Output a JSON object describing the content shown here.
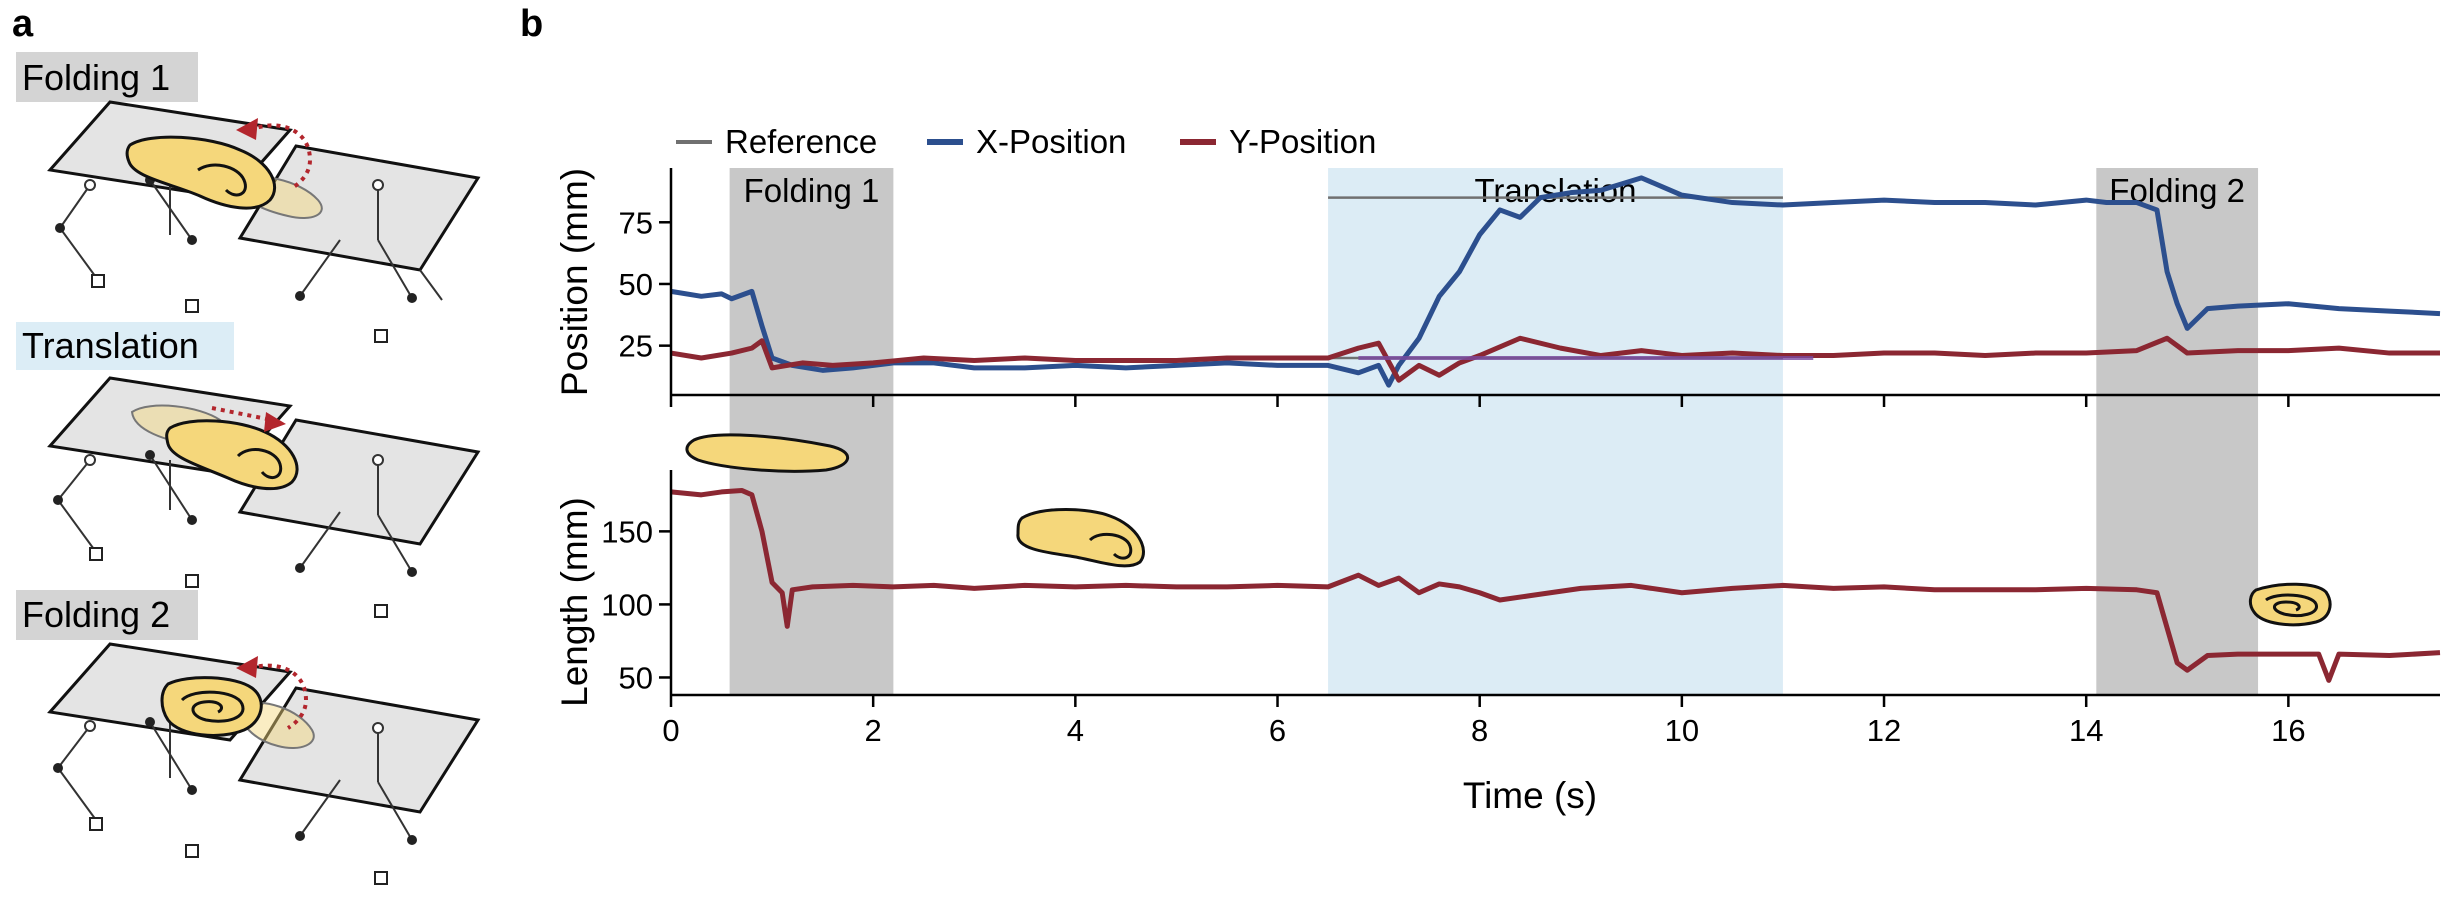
{
  "panel_a": {
    "letter": "a",
    "stages": [
      "Folding 1",
      "Translation",
      "Folding 2"
    ],
    "colors": {
      "plate": "#e4e4e4",
      "object": "#f5d77b",
      "arrow": "#b3262d",
      "label_gray": "#d4d4d4",
      "label_blue": "#dcedf6"
    }
  },
  "panel_b": {
    "letter": "b"
  },
  "chart_data": [
    {
      "type": "line",
      "ylabel": "Position (mm)",
      "xlim": [
        0,
        17.5
      ],
      "ylim": [
        5,
        97
      ],
      "yticks": [
        25,
        50,
        75
      ],
      "legend": {
        "placement": "top",
        "entries": [
          "Reference",
          "X-Position",
          "Y-Position"
        ]
      },
      "phases": [
        {
          "label": "Folding 1",
          "start": 0.58,
          "end": 2.2,
          "color": "#c8c8c8"
        },
        {
          "label": "Translation",
          "start": 6.5,
          "end": 11.0,
          "color": "#dcecf5"
        },
        {
          "label": "Folding 2",
          "start": 14.1,
          "end": 15.7,
          "color": "#c8c8c8"
        }
      ],
      "series": [
        {
          "name": "Reference",
          "color": "#707070",
          "segments": [
            [
              [
                6.5,
                85
              ],
              [
                11.0,
                85
              ]
            ],
            [
              [
                6.5,
                20
              ],
              [
                11.0,
                20
              ]
            ]
          ]
        },
        {
          "name": "X-Position",
          "color": "#2c4f8e",
          "points": [
            [
              0,
              47
            ],
            [
              0.3,
              45
            ],
            [
              0.5,
              46
            ],
            [
              0.6,
              44
            ],
            [
              0.8,
              47
            ],
            [
              0.9,
              33
            ],
            [
              1.0,
              20
            ],
            [
              1.2,
              17
            ],
            [
              1.5,
              15
            ],
            [
              1.8,
              16
            ],
            [
              2.2,
              18
            ],
            [
              2.6,
              18
            ],
            [
              3.0,
              16
            ],
            [
              3.5,
              16
            ],
            [
              4.0,
              17
            ],
            [
              4.5,
              16
            ],
            [
              5.0,
              17
            ],
            [
              5.5,
              18
            ],
            [
              6.0,
              17
            ],
            [
              6.5,
              17
            ],
            [
              6.8,
              14
            ],
            [
              7.0,
              17
            ],
            [
              7.1,
              9
            ],
            [
              7.2,
              17
            ],
            [
              7.4,
              28
            ],
            [
              7.6,
              45
            ],
            [
              7.8,
              55
            ],
            [
              8.0,
              70
            ],
            [
              8.2,
              80
            ],
            [
              8.4,
              77
            ],
            [
              8.6,
              85
            ],
            [
              8.9,
              87
            ],
            [
              9.2,
              88
            ],
            [
              9.6,
              93
            ],
            [
              10.0,
              86
            ],
            [
              10.5,
              83
            ],
            [
              11.0,
              82
            ],
            [
              11.5,
              83
            ],
            [
              12.0,
              84
            ],
            [
              12.5,
              83
            ],
            [
              13.0,
              83
            ],
            [
              13.5,
              82
            ],
            [
              14.0,
              84
            ],
            [
              14.2,
              83
            ],
            [
              14.5,
              83
            ],
            [
              14.7,
              80
            ],
            [
              14.8,
              55
            ],
            [
              14.9,
              42
            ],
            [
              15.0,
              32
            ],
            [
              15.2,
              40
            ],
            [
              15.5,
              41
            ],
            [
              16.0,
              42
            ],
            [
              16.5,
              40
            ],
            [
              17.0,
              39
            ],
            [
              17.5,
              38
            ]
          ]
        },
        {
          "name": "Y-Position",
          "color": "#8b2732",
          "points": [
            [
              0,
              22
            ],
            [
              0.3,
              20
            ],
            [
              0.6,
              22
            ],
            [
              0.8,
              24
            ],
            [
              0.9,
              27
            ],
            [
              1.0,
              16
            ],
            [
              1.3,
              18
            ],
            [
              1.6,
              17
            ],
            [
              2.0,
              18
            ],
            [
              2.5,
              20
            ],
            [
              3.0,
              19
            ],
            [
              3.5,
              20
            ],
            [
              4.0,
              19
            ],
            [
              4.5,
              19
            ],
            [
              5.0,
              19
            ],
            [
              5.5,
              20
            ],
            [
              6.0,
              20
            ],
            [
              6.5,
              20
            ],
            [
              6.8,
              24
            ],
            [
              7.0,
              26
            ],
            [
              7.2,
              11
            ],
            [
              7.4,
              17
            ],
            [
              7.6,
              13
            ],
            [
              7.8,
              18
            ],
            [
              8.0,
              21
            ],
            [
              8.4,
              28
            ],
            [
              8.8,
              24
            ],
            [
              9.2,
              21
            ],
            [
              9.6,
              23
            ],
            [
              10.0,
              21
            ],
            [
              10.5,
              22
            ],
            [
              11.0,
              21
            ],
            [
              11.5,
              21
            ],
            [
              12.0,
              22
            ],
            [
              12.5,
              22
            ],
            [
              13.0,
              21
            ],
            [
              13.5,
              22
            ],
            [
              14.0,
              22
            ],
            [
              14.5,
              23
            ],
            [
              14.8,
              28
            ],
            [
              15.0,
              22
            ],
            [
              15.5,
              23
            ],
            [
              16.0,
              23
            ],
            [
              16.5,
              24
            ],
            [
              17.0,
              22
            ],
            [
              17.5,
              22
            ]
          ]
        }
      ]
    },
    {
      "type": "line",
      "xlabel": "Time (s)",
      "ylabel": "Length (mm)",
      "xlim": [
        0,
        17.5
      ],
      "xticks": [
        0,
        2,
        4,
        6,
        8,
        10,
        12,
        14,
        16
      ],
      "ylim": [
        38,
        192
      ],
      "yticks": [
        50,
        100,
        150
      ],
      "series": [
        {
          "name": "Length",
          "color": "#8b2732",
          "points": [
            [
              0,
              177
            ],
            [
              0.3,
              175
            ],
            [
              0.5,
              177
            ],
            [
              0.7,
              178
            ],
            [
              0.8,
              175
            ],
            [
              0.9,
              150
            ],
            [
              1.0,
              115
            ],
            [
              1.1,
              108
            ],
            [
              1.15,
              85
            ],
            [
              1.2,
              110
            ],
            [
              1.4,
              112
            ],
            [
              1.8,
              113
            ],
            [
              2.2,
              112
            ],
            [
              2.6,
              113
            ],
            [
              3.0,
              111
            ],
            [
              3.5,
              113
            ],
            [
              4.0,
              112
            ],
            [
              4.5,
              113
            ],
            [
              5.0,
              112
            ],
            [
              5.5,
              112
            ],
            [
              6.0,
              113
            ],
            [
              6.5,
              112
            ],
            [
              6.8,
              120
            ],
            [
              7.0,
              113
            ],
            [
              7.2,
              118
            ],
            [
              7.4,
              108
            ],
            [
              7.6,
              114
            ],
            [
              7.8,
              112
            ],
            [
              8.0,
              108
            ],
            [
              8.2,
              103
            ],
            [
              8.5,
              106
            ],
            [
              9.0,
              111
            ],
            [
              9.5,
              113
            ],
            [
              10.0,
              108
            ],
            [
              10.5,
              111
            ],
            [
              11.0,
              113
            ],
            [
              11.5,
              111
            ],
            [
              12.0,
              112
            ],
            [
              12.5,
              110
            ],
            [
              13.0,
              110
            ],
            [
              13.5,
              110
            ],
            [
              14.0,
              111
            ],
            [
              14.5,
              110
            ],
            [
              14.7,
              108
            ],
            [
              14.9,
              60
            ],
            [
              15.0,
              55
            ],
            [
              15.2,
              65
            ],
            [
              15.5,
              66
            ],
            [
              16.0,
              66
            ],
            [
              16.3,
              66
            ],
            [
              16.4,
              48
            ],
            [
              16.5,
              66
            ],
            [
              17.0,
              65
            ],
            [
              17.5,
              67
            ]
          ]
        }
      ]
    }
  ]
}
